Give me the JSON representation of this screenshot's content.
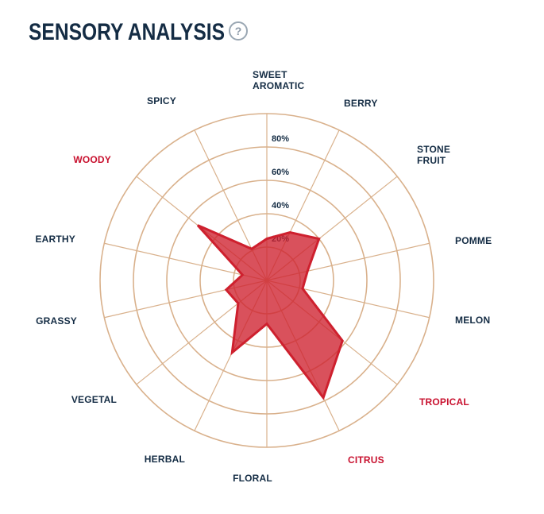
{
  "page": {
    "title": "SENSORY ANALYSIS",
    "help_icon_glyph": "?"
  },
  "colors": {
    "navy": "#142C44",
    "red": "#C8102E",
    "grid": "#D9B18C",
    "polygon_stroke": "#CE202E",
    "polygon_fill": "#CE202E",
    "polygon_fill_opacity": 0.78,
    "icon_gray": "#9AA7B3"
  },
  "chart_data": {
    "type": "radar",
    "title": "SENSORY ANALYSIS",
    "max": 100,
    "rings": [
      20,
      40,
      60,
      80,
      100
    ],
    "ring_labels": [
      "20%",
      "40%",
      "60%",
      "80%"
    ],
    "grid": true,
    "categories": [
      "SWEET AROMATIC",
      "BERRY",
      "STONE FRUIT",
      "POMME",
      "MELON",
      "TROPICAL",
      "CITRUS",
      "FLORAL",
      "HERBAL",
      "VEGETAL",
      "GRASSY",
      "EARTHY",
      "WOODY",
      "SPICY"
    ],
    "values": [
      25,
      32,
      40,
      25,
      22,
      58,
      78,
      26,
      48,
      22,
      25,
      15,
      53,
      21
    ],
    "highlighted_categories": [
      "TROPICAL",
      "CITRUS",
      "WOODY"
    ],
    "axes": [
      {
        "label": "SWEET AROMATIC",
        "lines": [
          "SWEET",
          "AROMATIC"
        ],
        "value": 25,
        "highlight": false
      },
      {
        "label": "BERRY",
        "lines": [
          "BERRY"
        ],
        "value": 32,
        "highlight": false
      },
      {
        "label": "STONE FRUIT",
        "lines": [
          "STONE",
          "FRUIT"
        ],
        "value": 40,
        "highlight": false
      },
      {
        "label": "POMME",
        "lines": [
          "POMME"
        ],
        "value": 25,
        "highlight": false
      },
      {
        "label": "MELON",
        "lines": [
          "MELON"
        ],
        "value": 22,
        "highlight": false
      },
      {
        "label": "TROPICAL",
        "lines": [
          "TROPICAL"
        ],
        "value": 58,
        "highlight": true
      },
      {
        "label": "CITRUS",
        "lines": [
          "CITRUS"
        ],
        "value": 78,
        "highlight": true
      },
      {
        "label": "FLORAL",
        "lines": [
          "FLORAL"
        ],
        "value": 26,
        "highlight": false
      },
      {
        "label": "HERBAL",
        "lines": [
          "HERBAL"
        ],
        "value": 48,
        "highlight": false
      },
      {
        "label": "VEGETAL",
        "lines": [
          "VEGETAL"
        ],
        "value": 22,
        "highlight": false
      },
      {
        "label": "GRASSY",
        "lines": [
          "GRASSY"
        ],
        "value": 25,
        "highlight": false
      },
      {
        "label": "EARTHY",
        "lines": [
          "EARTHY"
        ],
        "value": 15,
        "highlight": false
      },
      {
        "label": "WOODY",
        "lines": [
          "WOODY"
        ],
        "value": 53,
        "highlight": true
      },
      {
        "label": "SPICY",
        "lines": [
          "SPICY"
        ],
        "value": 21,
        "highlight": false
      }
    ]
  }
}
